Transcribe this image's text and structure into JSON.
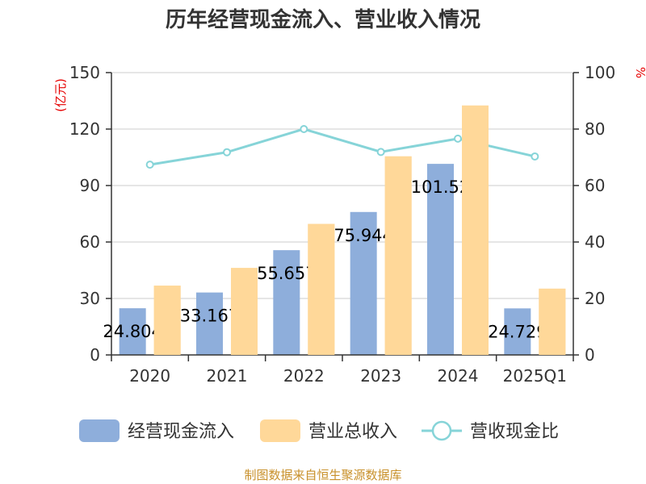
{
  "chart_data": {
    "type": "bar",
    "title": "历年经营现金流入、营业收入情况",
    "categories": [
      "2020",
      "2021",
      "2022",
      "2023",
      "2024",
      "2025Q1"
    ],
    "left_unit": "(亿元)",
    "right_unit": "%",
    "left_axis": {
      "min": 0,
      "max": 150,
      "ticks": [
        0,
        30,
        60,
        90,
        120,
        150
      ]
    },
    "right_axis": {
      "min": 0,
      "max": 100,
      "ticks": [
        0,
        20,
        40,
        60,
        80,
        100
      ]
    },
    "series": [
      {
        "name": "经营现金流入",
        "kind": "bar",
        "axis": "left",
        "color": "#8eaedb",
        "values": [
          24.804,
          33.167,
          55.657,
          75.944,
          101.52,
          24.729
        ],
        "labels": [
          "24.804",
          "33.167",
          "55.657",
          "75.944",
          "101.52",
          "24.729"
        ]
      },
      {
        "name": "营业总收入",
        "kind": "bar",
        "axis": "left",
        "color": "#ffd899",
        "values": [
          36.8,
          46.2,
          69.6,
          105.5,
          132.5,
          35.2
        ]
      },
      {
        "name": "营收现金比",
        "kind": "line",
        "axis": "right",
        "color": "#86d4d8",
        "values": [
          67.4,
          71.8,
          80.0,
          71.9,
          76.6,
          70.3
        ]
      }
    ],
    "grid": true,
    "legend_position": "bottom"
  },
  "source": "制图数据来自恒生聚源数据库"
}
